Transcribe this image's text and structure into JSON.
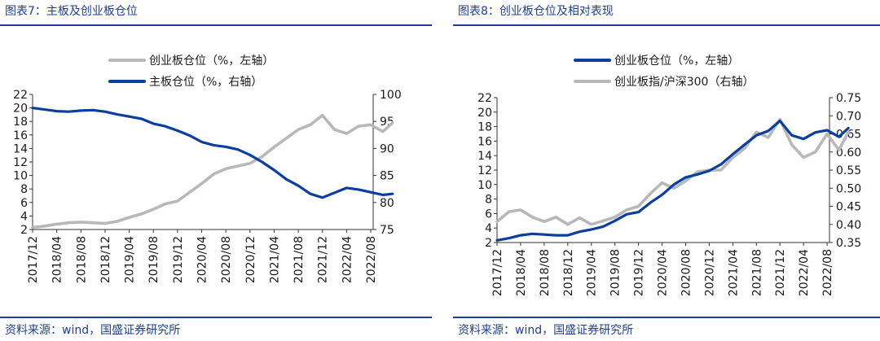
{
  "colors": {
    "accent": "#1f3f8f",
    "blue_series": "#0a3fa0",
    "gray_series": "#b8b8b8"
  },
  "source_label": "资料来源：wind，国盛证券研究所",
  "chart_data": [
    {
      "type": "line",
      "title": "图表7：主板及创业板仓位",
      "x_tick_labels": [
        "2017/12",
        "2018/04",
        "2018/08",
        "2018/12",
        "2019/04",
        "2019/08",
        "2019/12",
        "2020/04",
        "2020/08",
        "2020/12",
        "2021/04",
        "2021/08",
        "2021/12",
        "2022/04",
        "2022/08"
      ],
      "y_left": {
        "label": "",
        "ticks": [
          2,
          4,
          6,
          8,
          10,
          12,
          14,
          16,
          18,
          20,
          22
        ],
        "ylim": [
          2,
          22
        ]
      },
      "y_right": {
        "label": "",
        "ticks": [
          75,
          80,
          85,
          90,
          95,
          100
        ],
        "ylim": [
          75,
          100
        ]
      },
      "legend_position": "top-center",
      "series": [
        {
          "name": "创业板仓位（%，左轴）",
          "axis": "left",
          "color": "gray",
          "x": [
            0,
            0.5,
            1,
            1.5,
            2,
            2.5,
            3,
            3.5,
            4,
            4.5,
            5,
            5.5,
            6,
            6.5,
            7,
            7.5,
            8,
            8.5,
            9,
            9.5,
            10,
            10.5,
            11,
            11.5,
            12,
            12.5,
            13,
            13.5,
            14,
            14.5,
            14.9
          ],
          "values": [
            2.3,
            2.5,
            2.8,
            3.0,
            3.1,
            3.0,
            2.9,
            3.2,
            3.8,
            4.3,
            5.0,
            5.8,
            6.2,
            7.5,
            8.8,
            10.2,
            11.0,
            11.4,
            11.8,
            12.8,
            14.2,
            15.5,
            16.8,
            17.5,
            18.9,
            16.8,
            16.2,
            17.3,
            17.5,
            16.5,
            17.8
          ]
        },
        {
          "name": "主板仓位（%，右轴）",
          "axis": "right",
          "color": "blue",
          "x": [
            0,
            0.5,
            1,
            1.5,
            2,
            2.5,
            3,
            3.5,
            4,
            4.5,
            5,
            5.5,
            6,
            6.5,
            7,
            7.5,
            8,
            8.5,
            9,
            9.5,
            10,
            10.5,
            11,
            11.5,
            12,
            12.5,
            13,
            13.5,
            14,
            14.5,
            14.9
          ],
          "values": [
            97.5,
            97.2,
            96.9,
            96.8,
            97.0,
            97.1,
            96.8,
            96.3,
            95.9,
            95.5,
            94.6,
            94.1,
            93.3,
            92.4,
            91.2,
            90.6,
            90.3,
            89.8,
            88.8,
            87.5,
            86.0,
            84.3,
            83.1,
            81.6,
            80.9,
            81.8,
            82.7,
            82.4,
            81.9,
            81.4,
            81.6
          ]
        }
      ]
    },
    {
      "type": "line",
      "title": "图表8：创业板仓位及相对表现",
      "x_tick_labels": [
        "2017/12",
        "2018/04",
        "2018/08",
        "2018/12",
        "2019/04",
        "2019/08",
        "2019/12",
        "2020/04",
        "2020/08",
        "2020/12",
        "2021/04",
        "2021/08",
        "2021/12",
        "2022/04",
        "2022/08"
      ],
      "y_left": {
        "label": "",
        "ticks": [
          2,
          4,
          6,
          8,
          10,
          12,
          14,
          16,
          18,
          20,
          22
        ],
        "ylim": [
          2,
          22
        ]
      },
      "y_right": {
        "label": "",
        "ticks": [
          "0.35",
          "0.40",
          "0.45",
          "0.50",
          "0.55",
          "0.60",
          "0.65",
          "0.70",
          "0.75"
        ],
        "ylim": [
          0.35,
          0.75
        ]
      },
      "legend_position": "top-center",
      "series": [
        {
          "name": "创业板仓位（%，左轴）",
          "axis": "left",
          "color": "blue",
          "x": [
            0,
            0.5,
            1,
            1.5,
            2,
            2.5,
            3,
            3.5,
            4,
            4.5,
            5,
            5.5,
            6,
            6.5,
            7,
            7.5,
            8,
            8.5,
            9,
            9.5,
            10,
            10.5,
            11,
            11.5,
            12,
            12.5,
            13,
            13.5,
            14,
            14.5,
            14.9
          ],
          "values": [
            2.3,
            2.6,
            3.0,
            3.2,
            3.1,
            3.0,
            3.0,
            3.5,
            3.8,
            4.2,
            5.0,
            5.9,
            6.2,
            7.5,
            8.6,
            10.0,
            11.0,
            11.4,
            11.9,
            12.8,
            14.2,
            15.5,
            16.8,
            17.4,
            18.8,
            16.8,
            16.3,
            17.2,
            17.5,
            16.6,
            17.8
          ]
        },
        {
          "name": "创业板指/沪深300（右轴）",
          "axis": "right",
          "color": "gray",
          "x": [
            0,
            0.5,
            1,
            1.5,
            2,
            2.5,
            3,
            3.5,
            4,
            4.5,
            5,
            5.5,
            6,
            6.5,
            7,
            7.5,
            8,
            8.5,
            9,
            9.5,
            10,
            10.5,
            11,
            11.5,
            12,
            12.5,
            13,
            13.5,
            14,
            14.5,
            14.9
          ],
          "values": [
            0.408,
            0.435,
            0.44,
            0.42,
            0.408,
            0.42,
            0.4,
            0.418,
            0.4,
            0.41,
            0.42,
            0.44,
            0.45,
            0.485,
            0.515,
            0.5,
            0.52,
            0.545,
            0.55,
            0.55,
            0.585,
            0.61,
            0.655,
            0.64,
            0.69,
            0.62,
            0.585,
            0.6,
            0.65,
            0.605,
            0.655
          ]
        }
      ]
    }
  ]
}
